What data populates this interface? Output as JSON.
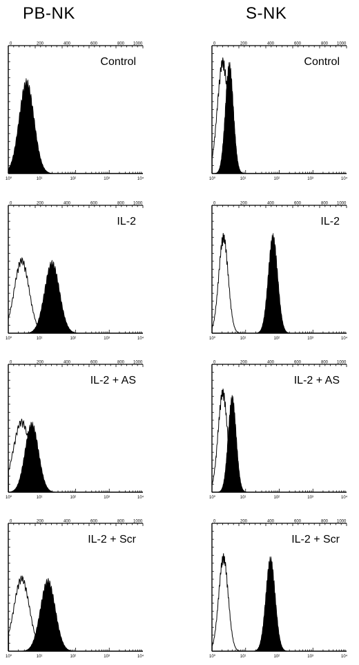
{
  "columns": [
    {
      "title": "PB-NK"
    },
    {
      "title": "S-NK"
    }
  ],
  "chart_data": [
    {
      "type": "histogram",
      "column": "PB-NK",
      "label": "Control",
      "xscale": "log",
      "xlim": [
        1,
        10000
      ],
      "top_ticks": [
        "0",
        "200",
        "400",
        "600",
        "800",
        "1000"
      ],
      "bottom_ticks": [
        "10⁰",
        "10¹",
        "10²",
        "10³",
        "10⁴"
      ],
      "series": [
        {
          "style": "filled",
          "peak": 3.5,
          "spread": 0.22,
          "height": 0.78
        }
      ]
    },
    {
      "type": "histogram",
      "column": "S-NK",
      "label": "Control",
      "xscale": "log",
      "xlim": [
        1,
        10000
      ],
      "top_ticks": [
        "0",
        "200",
        "400",
        "600",
        "800",
        "1000"
      ],
      "bottom_ticks": [
        "10⁰",
        "10¹",
        "10²",
        "10³",
        "10⁴"
      ],
      "series": [
        {
          "style": "open",
          "peak": 2.1,
          "spread": 0.16,
          "height": 0.95
        },
        {
          "style": "filled",
          "peak": 3.3,
          "spread": 0.12,
          "height": 0.92
        }
      ]
    },
    {
      "type": "histogram",
      "column": "PB-NK",
      "label": "IL-2",
      "xscale": "log",
      "xlim": [
        1,
        10000
      ],
      "top_ticks": [
        "0",
        "200",
        "400",
        "600",
        "800",
        "1000"
      ],
      "bottom_ticks": [
        "10⁰",
        "10¹",
        "10²",
        "10³",
        "10⁴"
      ],
      "series": [
        {
          "style": "open",
          "peak": 2.5,
          "spread": 0.22,
          "height": 0.62
        },
        {
          "style": "filled",
          "peak": 20,
          "spread": 0.22,
          "height": 0.6
        }
      ]
    },
    {
      "type": "histogram",
      "column": "S-NK",
      "label": "IL-2",
      "xscale": "log",
      "xlim": [
        1,
        10000
      ],
      "top_ticks": [
        "0",
        "200",
        "400",
        "600",
        "800",
        "1000"
      ],
      "bottom_ticks": [
        "10⁰",
        "10¹",
        "10²",
        "10³",
        "10⁴"
      ],
      "series": [
        {
          "style": "open",
          "peak": 2.2,
          "spread": 0.14,
          "height": 0.82
        },
        {
          "style": "filled",
          "peak": 65,
          "spread": 0.14,
          "height": 0.82
        }
      ]
    },
    {
      "type": "histogram",
      "column": "PB-NK",
      "label": "IL-2 + AS",
      "xscale": "log",
      "xlim": [
        1,
        10000
      ],
      "top_ticks": [
        "0",
        "200",
        "400",
        "600",
        "800",
        "1000"
      ],
      "bottom_ticks": [
        "10⁰",
        "10¹",
        "10²",
        "10³",
        "10⁴"
      ],
      "series": [
        {
          "style": "open",
          "peak": 2.5,
          "spread": 0.25,
          "height": 0.6
        },
        {
          "style": "filled",
          "peak": 5,
          "spread": 0.2,
          "height": 0.58
        }
      ]
    },
    {
      "type": "histogram",
      "column": "S-NK",
      "label": "IL-2 + AS",
      "xscale": "log",
      "xlim": [
        1,
        10000
      ],
      "top_ticks": [
        "0",
        "200",
        "400",
        "600",
        "800",
        "1000"
      ],
      "bottom_ticks": [
        "10⁰",
        "10¹",
        "10²",
        "10³",
        "10⁴"
      ],
      "series": [
        {
          "style": "open",
          "peak": 2.1,
          "spread": 0.14,
          "height": 0.85
        },
        {
          "style": "filled",
          "peak": 4,
          "spread": 0.12,
          "height": 0.8
        }
      ]
    },
    {
      "type": "histogram",
      "column": "PB-NK",
      "label": "IL-2 + Scr",
      "xscale": "log",
      "xlim": [
        1,
        10000
      ],
      "top_ticks": [
        "0",
        "200",
        "400",
        "600",
        "800",
        "1000"
      ],
      "bottom_ticks": [
        "10⁰",
        "10¹",
        "10²",
        "10³",
        "10⁴"
      ],
      "series": [
        {
          "style": "open",
          "peak": 2.5,
          "spread": 0.23,
          "height": 0.62
        },
        {
          "style": "filled",
          "peak": 15,
          "spread": 0.22,
          "height": 0.6
        }
      ]
    },
    {
      "type": "histogram",
      "column": "S-NK",
      "label": "IL-2 + Scr",
      "xscale": "log",
      "xlim": [
        1,
        10000
      ],
      "top_ticks": [
        "0",
        "200",
        "400",
        "600",
        "800",
        "1000"
      ],
      "bottom_ticks": [
        "10⁰",
        "10¹",
        "10²",
        "10³",
        "10⁴"
      ],
      "series": [
        {
          "style": "open",
          "peak": 2.2,
          "spread": 0.14,
          "height": 0.8
        },
        {
          "style": "filled",
          "peak": 55,
          "spread": 0.14,
          "height": 0.78
        }
      ]
    }
  ]
}
